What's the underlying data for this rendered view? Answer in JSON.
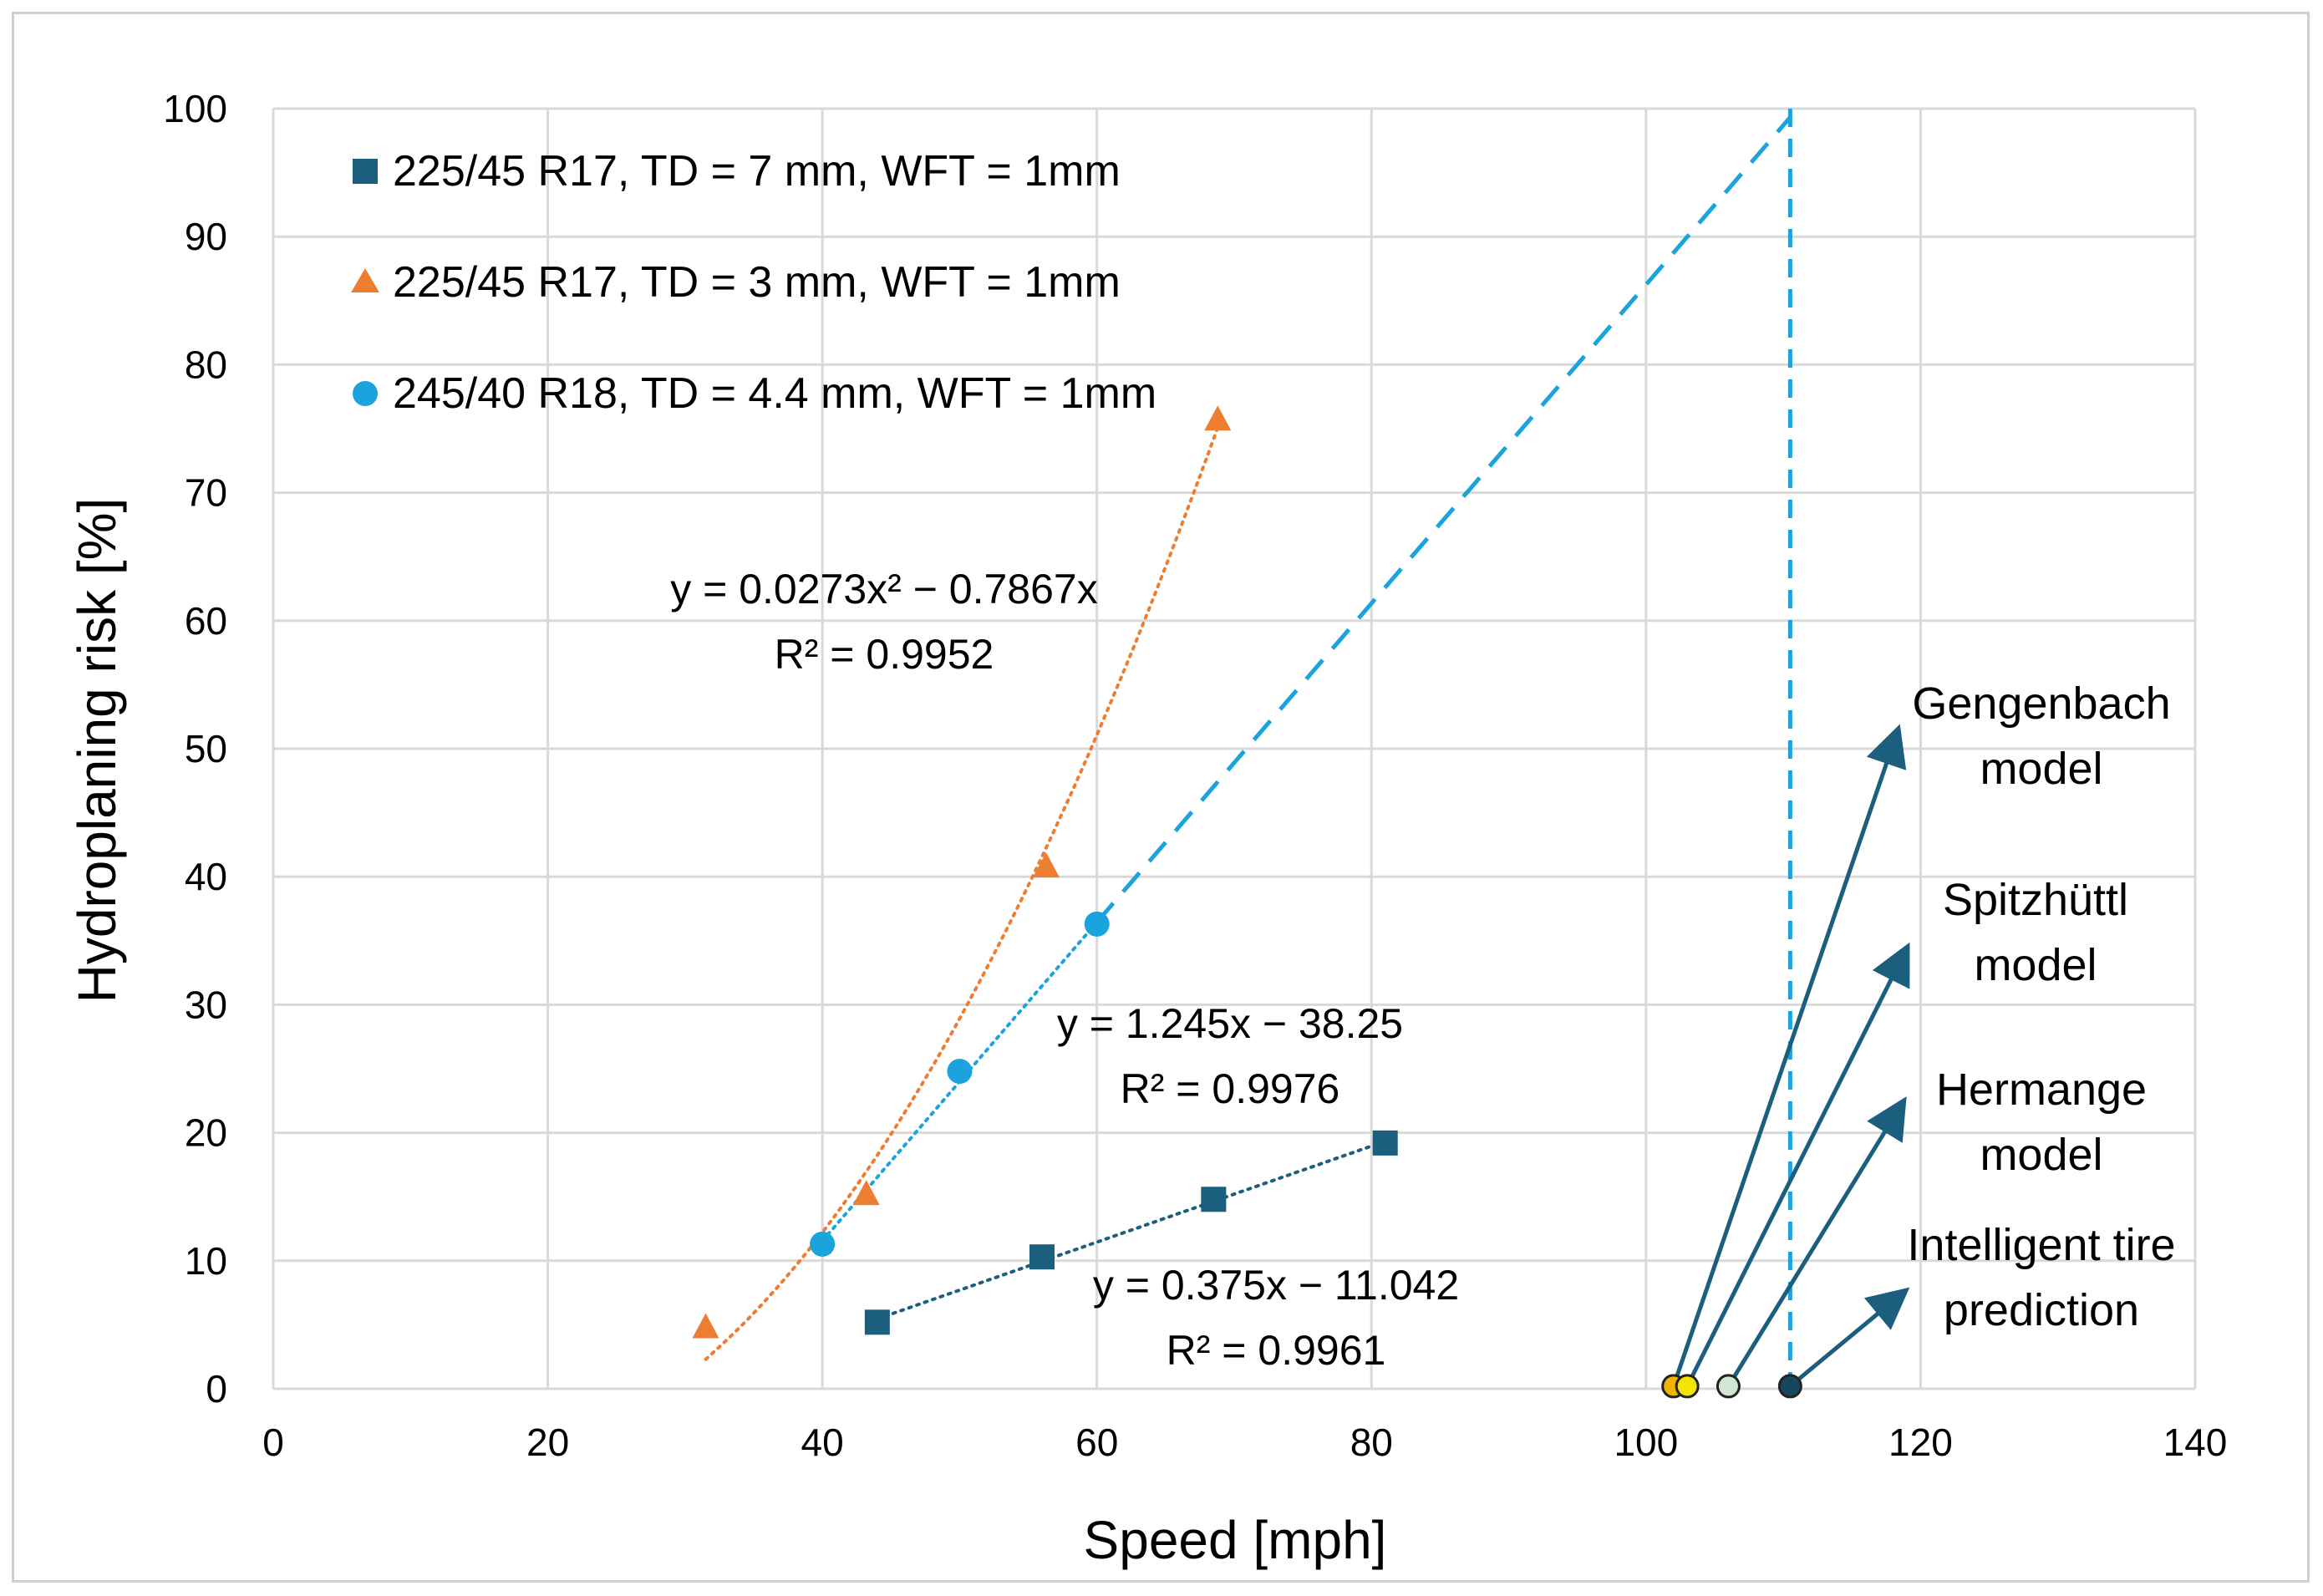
{
  "chart_data": {
    "type": "scatter",
    "title": "",
    "xlabel": "Speed [mph]",
    "ylabel": "Hydroplaning risk [%]",
    "xlim": [
      0,
      140
    ],
    "ylim": [
      0,
      100
    ],
    "xticks": [
      0,
      20,
      40,
      60,
      80,
      100,
      120,
      140
    ],
    "yticks": [
      0,
      10,
      20,
      30,
      40,
      50,
      60,
      70,
      80,
      90,
      100
    ],
    "grid": true,
    "legend_position": "top-left",
    "series": [
      {
        "name": "225/45 R17, TD = 7 mm, WFT = 1mm",
        "marker": "square",
        "color": "#1b5e7e",
        "x": [
          44,
          56,
          68.5,
          81
        ],
        "y": [
          5.2,
          10.3,
          14.8,
          19.2
        ],
        "trendline": {
          "kind": "linear",
          "a": 0.375,
          "b": -11.042,
          "x_range": [
            44,
            81
          ],
          "style": "dotted"
        }
      },
      {
        "name": "225/45 R17, TD = 3 mm, WFT = 1mm",
        "marker": "triangle",
        "color": "#ed7d31",
        "x": [
          31.5,
          43.2,
          56.3,
          68.8
        ],
        "y": [
          4.8,
          15.2,
          40.8,
          75.7
        ],
        "trendline": {
          "kind": "poly2",
          "a2": 0.0273,
          "a1": -0.7867,
          "a0": 0,
          "x_range": [
            31.5,
            68.8
          ],
          "style": "dotted"
        }
      },
      {
        "name": "245/40 R18, TD = 4.4 mm, WFT = 1mm",
        "marker": "circle",
        "color": "#1aa3dc",
        "x": [
          40,
          50,
          60
        ],
        "y": [
          11.3,
          24.8,
          36.3
        ],
        "trendline": {
          "kind": "linear",
          "a": 1.245,
          "b": -38.25,
          "x_range": [
            40,
            60
          ],
          "style": "dotted"
        },
        "extrapolation": {
          "x_range": [
            60,
            110.5
          ],
          "style": "dashed"
        }
      }
    ],
    "vertical_line": {
      "x": 110.5,
      "style": "dashed",
      "color": "#1aa3dc"
    },
    "model_points": [
      {
        "name": "Gengenbach model",
        "x": 102,
        "y": 0.2,
        "fill": "#f0b400"
      },
      {
        "name": "Spitzhüttl model",
        "x": 103,
        "y": 0.2,
        "fill": "#f2e600"
      },
      {
        "name": "Hermange model",
        "x": 106,
        "y": 0.2,
        "fill": "#cfe8d6"
      },
      {
        "name": "Intelligent tire prediction",
        "x": 110.5,
        "y": 0.2,
        "fill": "#15485f"
      }
    ],
    "annotations": {
      "eq_orange_line1": "y = 0.0273x² − 0.7867x",
      "eq_orange_line2": "R² = 0.9952",
      "eq_blue_line1": "y = 1.245x − 38.25",
      "eq_blue_line2": "R² = 0.9976",
      "eq_navy_line1": "y = 0.375x − 11.042",
      "eq_navy_line2": "R² = 0.9961",
      "label_gengenbach_1": "Gengenbach",
      "label_gengenbach_2": "model",
      "label_spitz_1": "Spitzhüttl",
      "label_spitz_2": "model",
      "label_hermange_1": "Hermange",
      "label_hermange_2": "model",
      "label_intelligent_1": "Intelligent tire",
      "label_intelligent_2": "prediction"
    },
    "arrow_color": "#1b5e7e"
  }
}
